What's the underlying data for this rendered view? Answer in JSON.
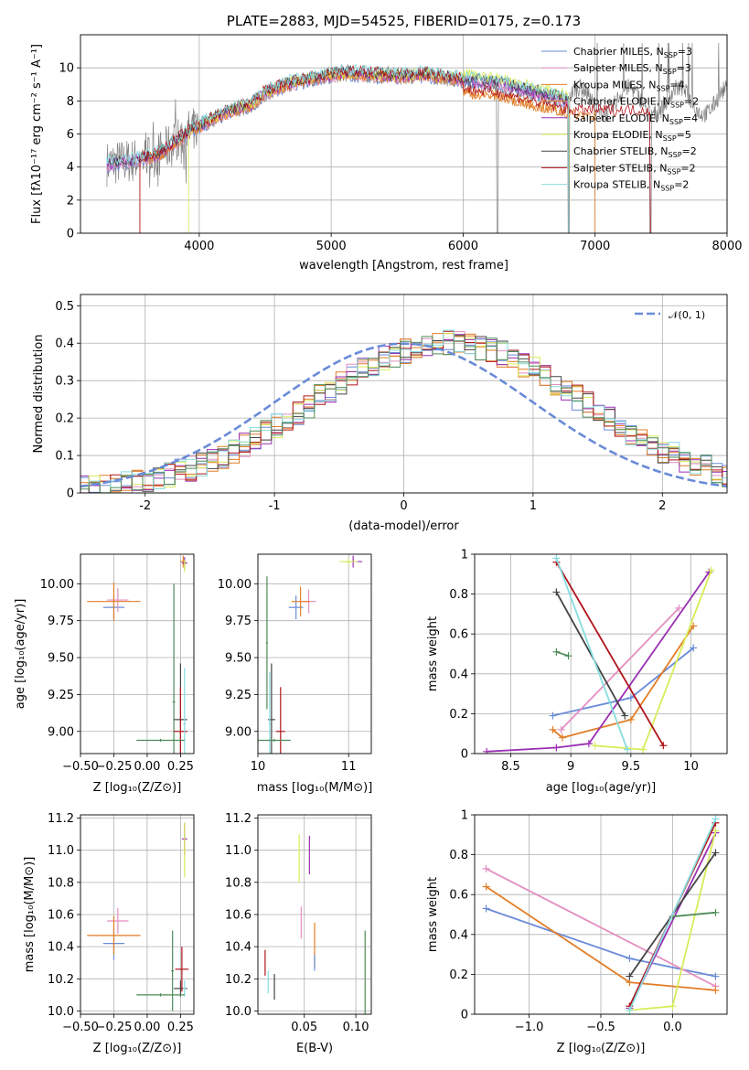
{
  "title": "PLATE=2883, MJD=54525, FIBERID=0175, z=0.173",
  "colors": {
    "chabrier_miles": "#6a8bd8",
    "salpeter_miles": "#e48fc0",
    "kroupa_miles": "#e27d26",
    "chabrier_elodie": "#e27d26",
    "salpeter_elodie": "#9b2fb3",
    "kroupa_elodie": "#d8ec59",
    "chabrier_stelib": "#444444",
    "salpeter_stelib": "#b0151c",
    "kroupa_stelib": "#86dde0",
    "data": "#808080",
    "green": "#4e8b58"
  },
  "chart_data": [
    {
      "type": "line",
      "panel": "spectrum",
      "title": "PLATE=2883, MJD=54525, FIBERID=0175, z=0.173",
      "xlabel": "wavelength [Angstrom, rest frame]",
      "ylabel": "Flux [fλ10⁻¹⁷ erg cm⁻² s⁻¹ A⁻¹]",
      "xlim": [
        3100,
        8000
      ],
      "ylim": [
        0,
        12
      ],
      "xticks": [
        4000,
        5000,
        6000,
        7000,
        8000
      ],
      "yticks": [
        0,
        2,
        4,
        6,
        8,
        10
      ],
      "grid": true,
      "legend_position": "top-right",
      "legend": [
        {
          "label": "Chabrier MILES, N",
          "sub": "SSP",
          "val": "=3",
          "color": "#6a8bd8"
        },
        {
          "label": "Salpeter MILES, N",
          "sub": "SSP",
          "val": "=3",
          "color": "#e48fc0"
        },
        {
          "label": "Kroupa MILES, N",
          "sub": "SSP",
          "val": "=4",
          "color": "#e27d26"
        },
        {
          "label": "Chabrier ELODIE, N",
          "sub": "SSP",
          "val": "=2",
          "color": "#e27d26"
        },
        {
          "label": "Salpeter ELODIE, N",
          "sub": "SSP",
          "val": "=4",
          "color": "#9b2fb3"
        },
        {
          "label": "Kroupa ELODIE, N",
          "sub": "SSP",
          "val": "=5",
          "color": "#d8ec59"
        },
        {
          "label": "Chabrier STELIB, N",
          "sub": "SSP",
          "val": "=2",
          "color": "#444444"
        },
        {
          "label": "Salpeter STELIB, N",
          "sub": "SSP",
          "val": "=2",
          "color": "#b0151c"
        },
        {
          "label": "Kroupa STELIB, N",
          "sub": "SSP",
          "val": "=2",
          "color": "#86dde0"
        }
      ],
      "continuum": {
        "x": [
          3300,
          3500,
          3700,
          3900,
          4000,
          4200,
          4400,
          4500,
          4700,
          4900,
          5100,
          5300,
          5500,
          5700,
          5900,
          6100,
          6300,
          6500,
          6700,
          6800
        ],
        "y": [
          4.2,
          4.4,
          4.8,
          6.0,
          6.5,
          7.3,
          7.8,
          8.5,
          9.1,
          9.4,
          9.7,
          9.6,
          9.5,
          9.6,
          9.4,
          9.2,
          9.0,
          8.6,
          8.2,
          8.0
        ]
      }
    },
    {
      "type": "area",
      "panel": "residuals",
      "xlabel": "(data-model)/error",
      "ylabel": "Normed distribution",
      "xlim": [
        -2.5,
        2.5
      ],
      "ylim": [
        0,
        0.53
      ],
      "xticks": [
        -2,
        -1,
        0,
        1,
        2
      ],
      "yticks": [
        0.0,
        0.1,
        0.2,
        0.3,
        0.4,
        0.5
      ],
      "grid": true,
      "legend": [
        {
          "label": "𝒩(0, 1)",
          "color": "#6a8bd8",
          "style": "dashed"
        }
      ],
      "legend_position": "top-right",
      "gaussian": {
        "mu": 0,
        "sigma": 1
      },
      "histogram_center": 0.35,
      "histogram_sigma": 1.05,
      "bin_width": 0.083
    },
    {
      "type": "scatter",
      "panel": "age-vs-Z",
      "xlabel": "Z [log₁₀(Z/Z⊙)]",
      "ylabel": "age  [log₁₀(age/yr)]",
      "xlim": [
        -0.5,
        0.35
      ],
      "ylim": [
        8.85,
        10.2
      ],
      "xticks": [
        -0.5,
        -0.25,
        0.0,
        0.25
      ],
      "xticklabels": [
        "−0.50",
        "−0.25",
        "0.00",
        "0.25"
      ],
      "yticks": [
        9.0,
        9.25,
        9.5,
        9.75,
        10.0
      ],
      "yticklabels": [
        "9.00",
        "9.25",
        "9.50",
        "9.75",
        "10.00"
      ],
      "grid": true,
      "points": [
        {
          "x": -0.25,
          "y": 9.84,
          "xerr": 0.08,
          "yerr": 0.08,
          "color": "#6a8bd8"
        },
        {
          "x": -0.22,
          "y": 9.89,
          "xerr": 0.08,
          "yerr": 0.08,
          "color": "#e48fc0"
        },
        {
          "x": -0.25,
          "y": 9.88,
          "xerr": 0.2,
          "yerr": 0.13,
          "color": "#e27d26"
        },
        {
          "x": 0.27,
          "y": 10.15,
          "xerr": 0.02,
          "yerr": 0.04,
          "color": "#e27d26"
        },
        {
          "x": 0.28,
          "y": 10.14,
          "xerr": 0.02,
          "yerr": 0.04,
          "color": "#9b2fb3"
        },
        {
          "x": 0.28,
          "y": 10.12,
          "xerr": 0.01,
          "yerr": 0.04,
          "color": "#d8ec59"
        },
        {
          "x": 0.2,
          "y": 9.2,
          "xerr": 0.01,
          "yerr": 0.8,
          "color": "#4e8b58"
        },
        {
          "x": 0.25,
          "y": 9.08,
          "xerr": 0.05,
          "yerr": 0.38,
          "color": "#444444"
        },
        {
          "x": 0.25,
          "y": 9.0,
          "xerr": 0.05,
          "yerr": 0.3,
          "color": "#b0151c"
        },
        {
          "x": 0.28,
          "y": 9.05,
          "xerr": 0.01,
          "yerr": 0.38,
          "color": "#86dde0"
        },
        {
          "x": 0.1,
          "y": 8.94,
          "xerr": 0.18,
          "yerr": 0.01,
          "color": "#4e8b58"
        }
      ]
    },
    {
      "type": "scatter",
      "panel": "age-vs-mass",
      "xlabel": "mass [log₁₀(M/M⊙)]",
      "ylabel": "",
      "xlim": [
        10.0,
        11.25
      ],
      "ylim": [
        8.85,
        10.2
      ],
      "xticks": [
        10,
        11
      ],
      "yticks": [
        9.0,
        9.25,
        9.5,
        9.75,
        10.0
      ],
      "yticklabels": [
        "9.00",
        "9.25",
        "9.50",
        "9.75",
        "10.00"
      ],
      "grid": true,
      "points": [
        {
          "x": 10.42,
          "y": 9.84,
          "xerr": 0.08,
          "yerr": 0.08,
          "color": "#6a8bd8"
        },
        {
          "x": 10.56,
          "y": 9.88,
          "xerr": 0.08,
          "yerr": 0.08,
          "color": "#e48fc0"
        },
        {
          "x": 10.47,
          "y": 9.88,
          "xerr": 0.1,
          "yerr": 0.1,
          "color": "#e27d26"
        },
        {
          "x": 11.05,
          "y": 10.15,
          "xerr": 0.1,
          "yerr": 0.04,
          "color": "#9b2fb3"
        },
        {
          "x": 11.0,
          "y": 10.15,
          "xerr": 0.1,
          "yerr": 0.02,
          "color": "#d8ec59"
        },
        {
          "x": 10.1,
          "y": 9.6,
          "xerr": 0.01,
          "yerr": 0.45,
          "color": "#4e8b58"
        },
        {
          "x": 10.15,
          "y": 9.08,
          "xerr": 0.04,
          "yerr": 0.38,
          "color": "#444444"
        },
        {
          "x": 10.25,
          "y": 9.0,
          "xerr": 0.05,
          "yerr": 0.3,
          "color": "#b0151c"
        },
        {
          "x": 10.13,
          "y": 9.05,
          "xerr": 0.01,
          "yerr": 0.35,
          "color": "#86dde0"
        },
        {
          "x": 10.18,
          "y": 8.94,
          "xerr": 0.18,
          "yerr": 0.01,
          "color": "#4e8b58"
        }
      ]
    },
    {
      "type": "line",
      "panel": "weight-vs-age",
      "xlabel": "age  [log₁₀(age/yr)]",
      "ylabel": "mass weight",
      "xlim": [
        8.2,
        10.3
      ],
      "ylim": [
        0,
        1.0
      ],
      "xticks": [
        8.5,
        9.0,
        9.5,
        10.0
      ],
      "yticks": [
        0.0,
        0.2,
        0.4,
        0.6,
        0.8,
        1.0
      ],
      "grid": true,
      "series": [
        {
          "color": "#6a8bd8",
          "x": [
            8.85,
            9.5,
            10.02
          ],
          "y": [
            0.19,
            0.28,
            0.53
          ]
        },
        {
          "color": "#e48fc0",
          "x": [
            8.92,
            9.9
          ],
          "y": [
            0.12,
            0.73
          ]
        },
        {
          "color": "#e27d26",
          "x": [
            8.85,
            8.93,
            9.5,
            10.02
          ],
          "y": [
            0.12,
            0.08,
            0.17,
            0.64
          ]
        },
        {
          "color": "#9b2fb3",
          "x": [
            8.3,
            8.88,
            9.15,
            10.15
          ],
          "y": [
            0.01,
            0.03,
            0.05,
            0.91
          ]
        },
        {
          "color": "#d8ec59",
          "x": [
            9.2,
            9.6,
            10.17
          ],
          "y": [
            0.04,
            0.02,
            0.92
          ]
        },
        {
          "color": "#4e8b58",
          "x": [
            8.88,
            8.98
          ],
          "y": [
            0.51,
            0.49
          ]
        },
        {
          "color": "#444444",
          "x": [
            8.88,
            9.45
          ],
          "y": [
            0.81,
            0.19
          ]
        },
        {
          "color": "#b0151c",
          "x": [
            8.88,
            9.77
          ],
          "y": [
            0.96,
            0.04
          ]
        },
        {
          "color": "#86dde0",
          "x": [
            8.88,
            9.47
          ],
          "y": [
            0.98,
            0.02
          ]
        }
      ]
    },
    {
      "type": "scatter",
      "panel": "mass-vs-Z",
      "xlabel": "Z [log₁₀(Z/Z⊙)]",
      "ylabel": "mass [log₁₀(M/M⊙)]",
      "xlim": [
        -0.5,
        0.35
      ],
      "ylim": [
        9.98,
        11.22
      ],
      "xticks": [
        -0.5,
        -0.25,
        0.0,
        0.25
      ],
      "xticklabels": [
        "−0.50",
        "−0.25",
        "0.00",
        "0.25"
      ],
      "yticks": [
        10.0,
        10.2,
        10.4,
        10.6,
        10.8,
        11.0,
        11.2
      ],
      "yticklabels": [
        "10.0",
        "10.2",
        "10.4",
        "10.6",
        "10.8",
        "11.0",
        "11.2"
      ],
      "grid": true,
      "points": [
        {
          "x": -0.25,
          "y": 10.42,
          "xerr": 0.08,
          "yerr": 0.1,
          "color": "#6a8bd8"
        },
        {
          "x": -0.22,
          "y": 10.56,
          "xerr": 0.08,
          "yerr": 0.08,
          "color": "#e48fc0"
        },
        {
          "x": -0.25,
          "y": 10.47,
          "xerr": 0.2,
          "yerr": 0.12,
          "color": "#e27d26"
        },
        {
          "x": 0.28,
          "y": 11.07,
          "xerr": 0.02,
          "yerr": 0.1,
          "color": "#9b2fb3"
        },
        {
          "x": 0.28,
          "y": 11.0,
          "xerr": 0.01,
          "yerr": 0.17,
          "color": "#d8ec59"
        },
        {
          "x": 0.19,
          "y": 10.25,
          "xerr": 0.01,
          "yerr": 0.25,
          "color": "#4e8b58"
        },
        {
          "x": 0.25,
          "y": 10.14,
          "xerr": 0.05,
          "yerr": 0.05,
          "color": "#444444"
        },
        {
          "x": 0.26,
          "y": 10.26,
          "xerr": 0.05,
          "yerr": 0.14,
          "color": "#b0151c"
        },
        {
          "x": 0.28,
          "y": 10.14,
          "xerr": 0.01,
          "yerr": 0.05,
          "color": "#86dde0"
        },
        {
          "x": 0.1,
          "y": 10.1,
          "xerr": 0.18,
          "yerr": 0.01,
          "color": "#4e8b58"
        }
      ]
    },
    {
      "type": "scatter",
      "panel": "mass-vs-EBV",
      "xlabel": "E(B-V)",
      "ylabel": "",
      "xlim": [
        0.005,
        0.115
      ],
      "ylim": [
        9.98,
        11.22
      ],
      "xticks": [
        0.05,
        0.1
      ],
      "xticklabels": [
        "0.05",
        "0.10"
      ],
      "yticks": [
        10.0,
        10.2,
        10.4,
        10.6,
        10.8,
        11.0,
        11.2
      ],
      "yticklabels": [
        "10.0",
        "10.2",
        "10.4",
        "10.6",
        "10.8",
        "11.0",
        "11.2"
      ],
      "grid": true,
      "points": [
        {
          "x": 0.012,
          "y": 10.3,
          "xerr": 0,
          "yerr": 0.08,
          "color": "#b0151c"
        },
        {
          "x": 0.015,
          "y": 10.18,
          "xerr": 0,
          "yerr": 0.07,
          "color": "#86dde0"
        },
        {
          "x": 0.021,
          "y": 10.15,
          "xerr": 0,
          "yerr": 0.08,
          "color": "#444444"
        },
        {
          "x": 0.047,
          "y": 10.55,
          "xerr": 0,
          "yerr": 0.1,
          "color": "#e48fc0"
        },
        {
          "x": 0.045,
          "y": 10.95,
          "xerr": 0,
          "yerr": 0.15,
          "color": "#d8ec59"
        },
        {
          "x": 0.055,
          "y": 10.97,
          "xerr": 0,
          "yerr": 0.12,
          "color": "#9b2fb3"
        },
        {
          "x": 0.06,
          "y": 10.41,
          "xerr": 0,
          "yerr": 0.14,
          "color": "#e27d26"
        },
        {
          "x": 0.06,
          "y": 10.3,
          "xerr": 0,
          "yerr": 0.05,
          "color": "#6a8bd8"
        },
        {
          "x": 0.109,
          "y": 10.18,
          "xerr": 0,
          "yerr": 0.32,
          "color": "#4e8b58"
        }
      ]
    },
    {
      "type": "line",
      "panel": "weight-vs-Z",
      "xlabel": "Z [log₁₀(Z/Z⊙)]",
      "ylabel": "mass weight",
      "xlim": [
        -1.38,
        0.38
      ],
      "ylim": [
        0,
        1.0
      ],
      "xticks": [
        -1.0,
        -0.5,
        0.0
      ],
      "xticklabels": [
        "−1.0",
        "−0.5",
        "0.0"
      ],
      "yticks": [
        0.0,
        0.2,
        0.4,
        0.6,
        0.8,
        1.0
      ],
      "grid": true,
      "series": [
        {
          "color": "#6a8bd8",
          "x": [
            -1.3,
            -0.3,
            0.3
          ],
          "y": [
            0.53,
            0.28,
            0.19
          ]
        },
        {
          "color": "#e48fc0",
          "x": [
            -1.3,
            0.3
          ],
          "y": [
            0.73,
            0.14
          ]
        },
        {
          "color": "#e27d26",
          "x": [
            -1.3,
            -0.3,
            0.3
          ],
          "y": [
            0.64,
            0.16,
            0.12
          ]
        },
        {
          "color": "#9b2fb3",
          "x": [
            -0.3,
            0.3
          ],
          "y": [
            0.03,
            0.91
          ]
        },
        {
          "color": "#d8ec59",
          "x": [
            -0.3,
            0.0,
            0.3
          ],
          "y": [
            0.02,
            0.04,
            0.92
          ]
        },
        {
          "color": "#4e8b58",
          "x": [
            0.0,
            0.3
          ],
          "y": [
            0.49,
            0.51
          ]
        },
        {
          "color": "#444444",
          "x": [
            -0.3,
            0.3
          ],
          "y": [
            0.19,
            0.81
          ]
        },
        {
          "color": "#b0151c",
          "x": [
            -0.3,
            0.3
          ],
          "y": [
            0.04,
            0.96
          ]
        },
        {
          "color": "#86dde0",
          "x": [
            -0.3,
            0.3
          ],
          "y": [
            0.02,
            0.98
          ]
        }
      ]
    }
  ]
}
